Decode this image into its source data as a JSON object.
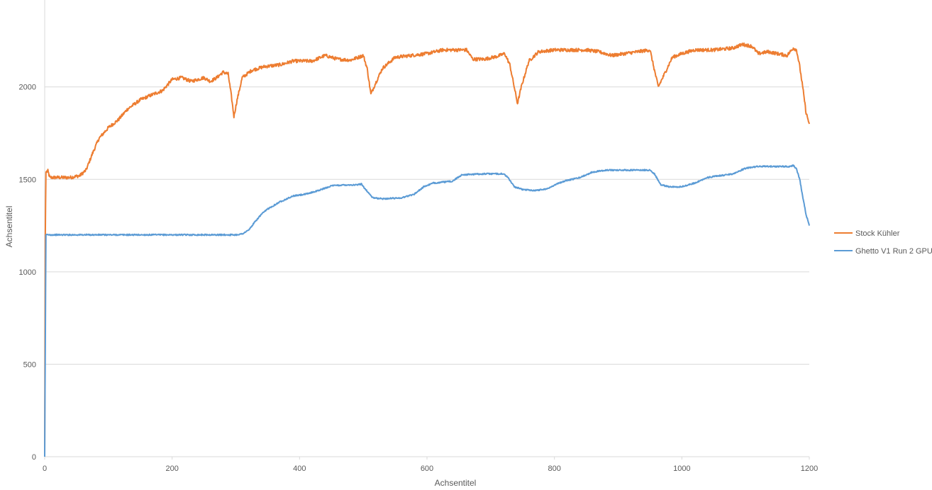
{
  "chart_data": {
    "type": "line",
    "title": "",
    "xlabel": "Achsentitel",
    "ylabel": "Achsentitel",
    "xlim": [
      0,
      1200
    ],
    "ylim": [
      0,
      2470
    ],
    "x_ticks": [
      "0",
      "200",
      "400",
      "600",
      "800",
      "1000",
      "1200"
    ],
    "x_tick_values": [
      0,
      200,
      400,
      600,
      800,
      1000,
      1200
    ],
    "y_ticks": [
      "0",
      "500",
      "1000",
      "1500",
      "2000"
    ],
    "y_tick_values": [
      0,
      500,
      1000,
      1500,
      2000
    ],
    "grid": "horizontal",
    "legend_position": "right",
    "series": [
      {
        "name": "Stock Kühler",
        "color": "#ED7D31",
        "points": [
          [
            0,
            0
          ],
          [
            1,
            1200
          ],
          [
            2,
            1540
          ],
          [
            5,
            1545
          ],
          [
            8,
            1510
          ],
          [
            20,
            1510
          ],
          [
            40,
            1510
          ],
          [
            55,
            1520
          ],
          [
            65,
            1550
          ],
          [
            75,
            1640
          ],
          [
            85,
            1720
          ],
          [
            100,
            1780
          ],
          [
            115,
            1820
          ],
          [
            130,
            1880
          ],
          [
            150,
            1930
          ],
          [
            170,
            1960
          ],
          [
            185,
            1980
          ],
          [
            200,
            2040
          ],
          [
            215,
            2050
          ],
          [
            230,
            2030
          ],
          [
            250,
            2050
          ],
          [
            260,
            2030
          ],
          [
            270,
            2050
          ],
          [
            280,
            2080
          ],
          [
            288,
            2070
          ],
          [
            293,
            1950
          ],
          [
            297,
            1840
          ],
          [
            302,
            1930
          ],
          [
            310,
            2050
          ],
          [
            325,
            2090
          ],
          [
            345,
            2110
          ],
          [
            370,
            2120
          ],
          [
            390,
            2140
          ],
          [
            420,
            2140
          ],
          [
            440,
            2170
          ],
          [
            460,
            2150
          ],
          [
            480,
            2145
          ],
          [
            500,
            2170
          ],
          [
            506,
            2100
          ],
          [
            512,
            1960
          ],
          [
            518,
            2010
          ],
          [
            530,
            2100
          ],
          [
            550,
            2160
          ],
          [
            575,
            2170
          ],
          [
            600,
            2180
          ],
          [
            625,
            2200
          ],
          [
            650,
            2200
          ],
          [
            662,
            2200
          ],
          [
            672,
            2150
          ],
          [
            690,
            2150
          ],
          [
            710,
            2165
          ],
          [
            722,
            2180
          ],
          [
            730,
            2120
          ],
          [
            738,
            1980
          ],
          [
            742,
            1910
          ],
          [
            748,
            2000
          ],
          [
            760,
            2140
          ],
          [
            775,
            2190
          ],
          [
            800,
            2200
          ],
          [
            825,
            2200
          ],
          [
            850,
            2200
          ],
          [
            870,
            2190
          ],
          [
            890,
            2170
          ],
          [
            920,
            2185
          ],
          [
            950,
            2200
          ],
          [
            957,
            2090
          ],
          [
            963,
            2000
          ],
          [
            970,
            2050
          ],
          [
            985,
            2160
          ],
          [
            1000,
            2180
          ],
          [
            1020,
            2200
          ],
          [
            1050,
            2200
          ],
          [
            1080,
            2210
          ],
          [
            1095,
            2230
          ],
          [
            1110,
            2220
          ],
          [
            1120,
            2180
          ],
          [
            1135,
            2190
          ],
          [
            1150,
            2180
          ],
          [
            1165,
            2170
          ],
          [
            1175,
            2210
          ],
          [
            1180,
            2200
          ],
          [
            1185,
            2110
          ],
          [
            1190,
            1990
          ],
          [
            1195,
            1860
          ],
          [
            1200,
            1800
          ]
        ]
      },
      {
        "name": "Ghetto V1 Run 2 GPU",
        "color": "#5B9BD5",
        "points": [
          [
            0,
            0
          ],
          [
            1,
            600
          ],
          [
            2,
            1200
          ],
          [
            5,
            1200
          ],
          [
            50,
            1200
          ],
          [
            100,
            1200
          ],
          [
            150,
            1200
          ],
          [
            200,
            1200
          ],
          [
            250,
            1200
          ],
          [
            300,
            1200
          ],
          [
            310,
            1205
          ],
          [
            320,
            1225
          ],
          [
            330,
            1270
          ],
          [
            340,
            1310
          ],
          [
            350,
            1340
          ],
          [
            360,
            1360
          ],
          [
            370,
            1380
          ],
          [
            380,
            1395
          ],
          [
            390,
            1410
          ],
          [
            410,
            1420
          ],
          [
            430,
            1440
          ],
          [
            450,
            1465
          ],
          [
            470,
            1470
          ],
          [
            490,
            1470
          ],
          [
            497,
            1475
          ],
          [
            505,
            1440
          ],
          [
            515,
            1400
          ],
          [
            530,
            1395
          ],
          [
            560,
            1400
          ],
          [
            580,
            1420
          ],
          [
            595,
            1460
          ],
          [
            610,
            1480
          ],
          [
            640,
            1490
          ],
          [
            655,
            1525
          ],
          [
            690,
            1530
          ],
          [
            720,
            1530
          ],
          [
            727,
            1510
          ],
          [
            737,
            1460
          ],
          [
            750,
            1445
          ],
          [
            770,
            1440
          ],
          [
            790,
            1450
          ],
          [
            800,
            1470
          ],
          [
            815,
            1490
          ],
          [
            840,
            1510
          ],
          [
            860,
            1540
          ],
          [
            880,
            1550
          ],
          [
            910,
            1550
          ],
          [
            950,
            1550
          ],
          [
            957,
            1530
          ],
          [
            967,
            1470
          ],
          [
            980,
            1460
          ],
          [
            1000,
            1460
          ],
          [
            1020,
            1480
          ],
          [
            1040,
            1510
          ],
          [
            1060,
            1520
          ],
          [
            1080,
            1530
          ],
          [
            1100,
            1560
          ],
          [
            1120,
            1570
          ],
          [
            1150,
            1570
          ],
          [
            1170,
            1570
          ],
          [
            1175,
            1575
          ],
          [
            1180,
            1555
          ],
          [
            1185,
            1500
          ],
          [
            1190,
            1400
          ],
          [
            1195,
            1310
          ],
          [
            1200,
            1250
          ]
        ]
      }
    ]
  }
}
